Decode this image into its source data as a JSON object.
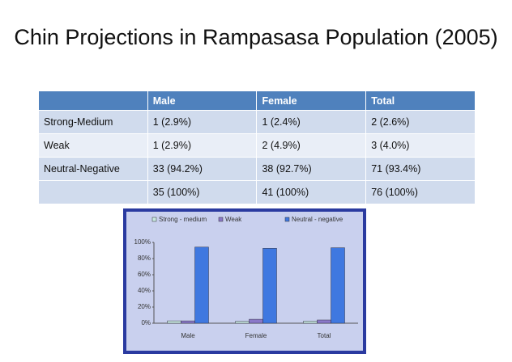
{
  "title": "Chin Projections in Rampasasa Population (2005)",
  "table": {
    "header": [
      "Male",
      "Female",
      "Total"
    ],
    "rows": [
      [
        "Strong-Medium",
        "1 (2.9%)",
        "1 (2.4%)",
        "2 (2.6%)"
      ],
      [
        "Weak",
        "1 (2.9%)",
        "2 (4.9%)",
        "3 (4.0%)"
      ],
      [
        "Neutral-Negative",
        "33 (94.2%)",
        "38 (92.7%)",
        "71 (93.4%)"
      ]
    ],
    "totals": [
      "35 (100%)",
      "41 (100%)",
      "76 (100%)"
    ]
  },
  "chart_data": {
    "type": "bar",
    "categories": [
      "Male",
      "Female",
      "Total"
    ],
    "series": [
      {
        "name": "Strong - medium",
        "color": "#c8e8e0",
        "values": [
          2.9,
          2.4,
          2.6
        ]
      },
      {
        "name": "Weak",
        "color": "#8a78c8",
        "values": [
          2.9,
          4.9,
          4.0
        ]
      },
      {
        "name": "Neutral - negative",
        "color": "#3f78e0",
        "values": [
          94.2,
          92.7,
          93.4
        ]
      }
    ],
    "ylim": [
      0,
      100
    ],
    "yticks": [
      {
        "value": 0,
        "label": "0%"
      },
      {
        "value": 20,
        "label": "20%"
      },
      {
        "value": 40,
        "label": "40%"
      },
      {
        "value": 60,
        "label": "60%"
      },
      {
        "value": 80,
        "label": "80%"
      },
      {
        "value": 100,
        "label": "100%"
      }
    ],
    "legend": "top"
  }
}
